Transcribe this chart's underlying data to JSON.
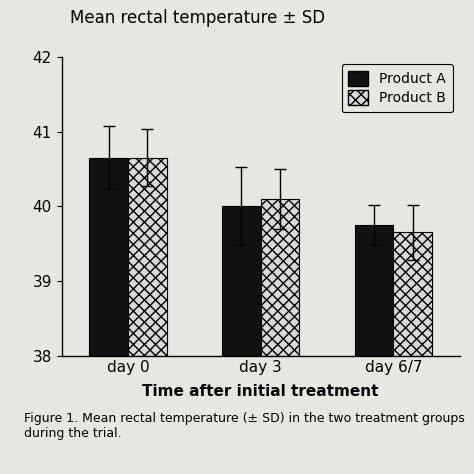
{
  "title": "Mean rectal temperature ± SD",
  "xlabel": "Time after initial treatment",
  "ylabel": "",
  "categories": [
    "day 0",
    "day 3",
    "day 6/7"
  ],
  "product_A_values": [
    40.65,
    40.0,
    39.75
  ],
  "product_B_values": [
    40.65,
    40.1,
    39.65
  ],
  "product_A_errors": [
    0.42,
    0.52,
    0.27
  ],
  "product_B_errors": [
    0.38,
    0.4,
    0.37
  ],
  "bar_bottom": 38,
  "ylim": [
    38,
    42
  ],
  "yticks": [
    38,
    39,
    40,
    41,
    42
  ],
  "bar_width": 0.32,
  "color_A": "#111111",
  "color_B_hatch": "xxx",
  "color_B_face": "#d8d8d8",
  "legend_labels": [
    "Product A",
    "Product B"
  ],
  "caption": "Figure 1. Mean rectal temperature (± SD) in the two treatment groups\nduring the trial.",
  "bg_color": "#e8e6e0",
  "title_fontsize": 12,
  "label_fontsize": 11,
  "tick_fontsize": 11,
  "caption_fontsize": 9,
  "legend_fontsize": 10
}
